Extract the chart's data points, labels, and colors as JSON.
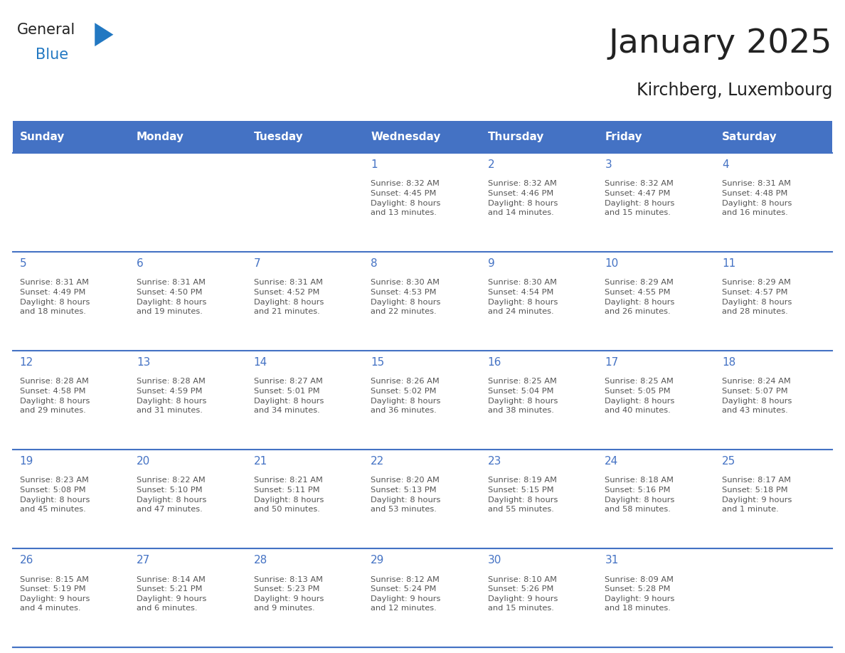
{
  "title": "January 2025",
  "subtitle": "Kirchberg, Luxembourg",
  "days_of_week": [
    "Sunday",
    "Monday",
    "Tuesday",
    "Wednesday",
    "Thursday",
    "Friday",
    "Saturday"
  ],
  "header_bg": "#4472C4",
  "header_text_color": "#FFFFFF",
  "row_line_color": "#4472C4",
  "day_num_color": "#4472C4",
  "cell_text_color": "#555555",
  "title_color": "#222222",
  "subtitle_color": "#222222",
  "logo_general_color": "#222222",
  "logo_blue_color": "#2278C2",
  "calendar": [
    [
      null,
      null,
      null,
      {
        "day": 1,
        "sunrise": "8:32 AM",
        "sunset": "4:45 PM",
        "daylight_h": "8 hours",
        "daylight_m": "and 13 minutes"
      },
      {
        "day": 2,
        "sunrise": "8:32 AM",
        "sunset": "4:46 PM",
        "daylight_h": "8 hours",
        "daylight_m": "and 14 minutes"
      },
      {
        "day": 3,
        "sunrise": "8:32 AM",
        "sunset": "4:47 PM",
        "daylight_h": "8 hours",
        "daylight_m": "and 15 minutes"
      },
      {
        "day": 4,
        "sunrise": "8:31 AM",
        "sunset": "4:48 PM",
        "daylight_h": "8 hours",
        "daylight_m": "and 16 minutes"
      }
    ],
    [
      {
        "day": 5,
        "sunrise": "8:31 AM",
        "sunset": "4:49 PM",
        "daylight_h": "8 hours",
        "daylight_m": "and 18 minutes"
      },
      {
        "day": 6,
        "sunrise": "8:31 AM",
        "sunset": "4:50 PM",
        "daylight_h": "8 hours",
        "daylight_m": "and 19 minutes"
      },
      {
        "day": 7,
        "sunrise": "8:31 AM",
        "sunset": "4:52 PM",
        "daylight_h": "8 hours",
        "daylight_m": "and 21 minutes"
      },
      {
        "day": 8,
        "sunrise": "8:30 AM",
        "sunset": "4:53 PM",
        "daylight_h": "8 hours",
        "daylight_m": "and 22 minutes"
      },
      {
        "day": 9,
        "sunrise": "8:30 AM",
        "sunset": "4:54 PM",
        "daylight_h": "8 hours",
        "daylight_m": "and 24 minutes"
      },
      {
        "day": 10,
        "sunrise": "8:29 AM",
        "sunset": "4:55 PM",
        "daylight_h": "8 hours",
        "daylight_m": "and 26 minutes"
      },
      {
        "day": 11,
        "sunrise": "8:29 AM",
        "sunset": "4:57 PM",
        "daylight_h": "8 hours",
        "daylight_m": "and 28 minutes"
      }
    ],
    [
      {
        "day": 12,
        "sunrise": "8:28 AM",
        "sunset": "4:58 PM",
        "daylight_h": "8 hours",
        "daylight_m": "and 29 minutes"
      },
      {
        "day": 13,
        "sunrise": "8:28 AM",
        "sunset": "4:59 PM",
        "daylight_h": "8 hours",
        "daylight_m": "and 31 minutes"
      },
      {
        "day": 14,
        "sunrise": "8:27 AM",
        "sunset": "5:01 PM",
        "daylight_h": "8 hours",
        "daylight_m": "and 34 minutes"
      },
      {
        "day": 15,
        "sunrise": "8:26 AM",
        "sunset": "5:02 PM",
        "daylight_h": "8 hours",
        "daylight_m": "and 36 minutes"
      },
      {
        "day": 16,
        "sunrise": "8:25 AM",
        "sunset": "5:04 PM",
        "daylight_h": "8 hours",
        "daylight_m": "and 38 minutes"
      },
      {
        "day": 17,
        "sunrise": "8:25 AM",
        "sunset": "5:05 PM",
        "daylight_h": "8 hours",
        "daylight_m": "and 40 minutes"
      },
      {
        "day": 18,
        "sunrise": "8:24 AM",
        "sunset": "5:07 PM",
        "daylight_h": "8 hours",
        "daylight_m": "and 43 minutes"
      }
    ],
    [
      {
        "day": 19,
        "sunrise": "8:23 AM",
        "sunset": "5:08 PM",
        "daylight_h": "8 hours",
        "daylight_m": "and 45 minutes"
      },
      {
        "day": 20,
        "sunrise": "8:22 AM",
        "sunset": "5:10 PM",
        "daylight_h": "8 hours",
        "daylight_m": "and 47 minutes"
      },
      {
        "day": 21,
        "sunrise": "8:21 AM",
        "sunset": "5:11 PM",
        "daylight_h": "8 hours",
        "daylight_m": "and 50 minutes"
      },
      {
        "day": 22,
        "sunrise": "8:20 AM",
        "sunset": "5:13 PM",
        "daylight_h": "8 hours",
        "daylight_m": "and 53 minutes"
      },
      {
        "day": 23,
        "sunrise": "8:19 AM",
        "sunset": "5:15 PM",
        "daylight_h": "8 hours",
        "daylight_m": "and 55 minutes"
      },
      {
        "day": 24,
        "sunrise": "8:18 AM",
        "sunset": "5:16 PM",
        "daylight_h": "8 hours",
        "daylight_m": "and 58 minutes"
      },
      {
        "day": 25,
        "sunrise": "8:17 AM",
        "sunset": "5:18 PM",
        "daylight_h": "9 hours",
        "daylight_m": "and 1 minute"
      }
    ],
    [
      {
        "day": 26,
        "sunrise": "8:15 AM",
        "sunset": "5:19 PM",
        "daylight_h": "9 hours",
        "daylight_m": "and 4 minutes"
      },
      {
        "day": 27,
        "sunrise": "8:14 AM",
        "sunset": "5:21 PM",
        "daylight_h": "9 hours",
        "daylight_m": "and 6 minutes"
      },
      {
        "day": 28,
        "sunrise": "8:13 AM",
        "sunset": "5:23 PM",
        "daylight_h": "9 hours",
        "daylight_m": "and 9 minutes"
      },
      {
        "day": 29,
        "sunrise": "8:12 AM",
        "sunset": "5:24 PM",
        "daylight_h": "9 hours",
        "daylight_m": "and 12 minutes"
      },
      {
        "day": 30,
        "sunrise": "8:10 AM",
        "sunset": "5:26 PM",
        "daylight_h": "9 hours",
        "daylight_m": "and 15 minutes"
      },
      {
        "day": 31,
        "sunrise": "8:09 AM",
        "sunset": "5:28 PM",
        "daylight_h": "9 hours",
        "daylight_m": "and 18 minutes"
      },
      null
    ]
  ],
  "figsize": [
    11.88,
    9.18
  ],
  "dpi": 100
}
